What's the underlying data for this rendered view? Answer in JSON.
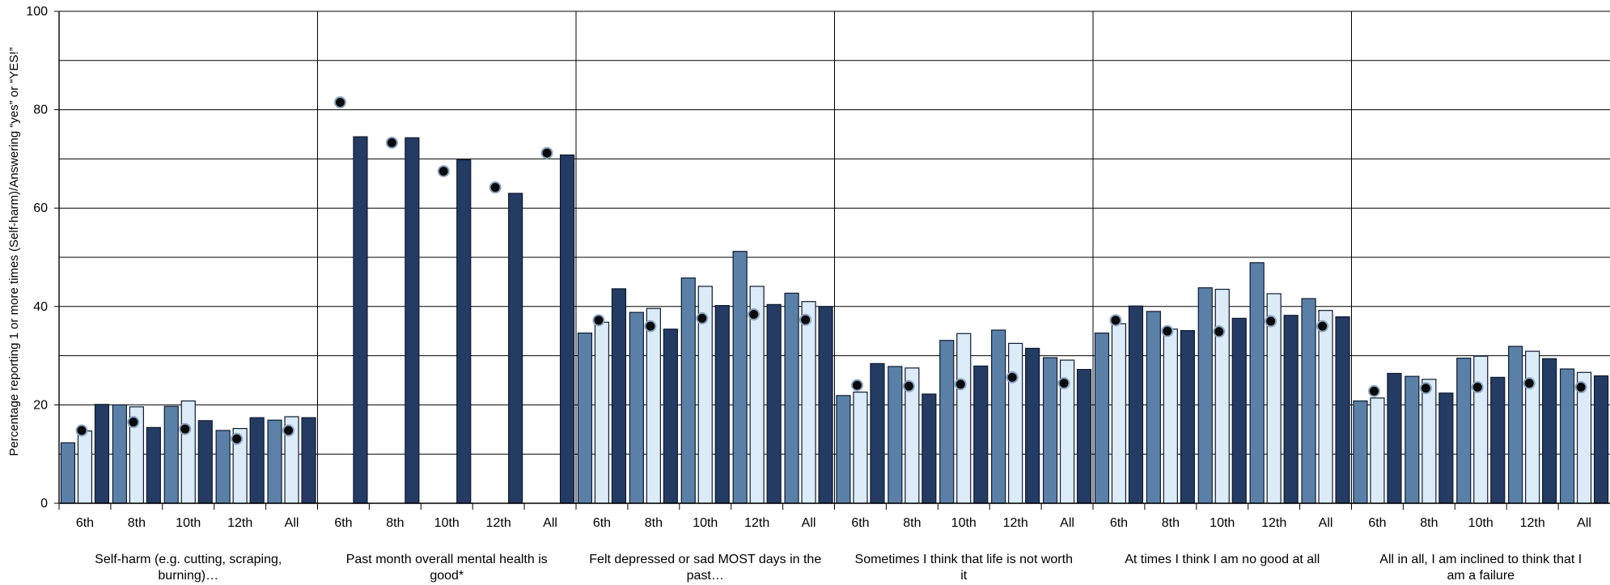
{
  "chart_data": {
    "type": "bar",
    "ylabel": "Percentage reporting 1 or more times (Self-harm)/Answering “yes” or “YES!”",
    "ylim": [
      0,
      100
    ],
    "yticks": [
      0,
      20,
      40,
      60,
      80,
      100
    ],
    "grid": true,
    "grades": [
      "6th",
      "8th",
      "10th",
      "12th",
      "All"
    ],
    "colors": {
      "bar1": "#5b80a8",
      "bar2": "#dcebf8",
      "bar3": "#243b63",
      "marker": "#0a0a0a",
      "marker_ring": "#8aa4c4",
      "grid": "#000000"
    },
    "groups": [
      {
        "label": [
          "Self-harm (e.g. cutting, scraping,",
          "burning)…"
        ],
        "bar1": [
          12.3,
          20.0,
          19.7,
          14.8,
          16.9
        ],
        "bar2": [
          14.7,
          19.6,
          20.8,
          15.2,
          17.6
        ],
        "bar3": [
          20.1,
          15.4,
          16.8,
          17.4,
          17.4
        ],
        "marker": [
          14.8,
          16.5,
          15.1,
          13.1,
          14.8
        ]
      },
      {
        "label": [
          "Past month overall mental health is",
          "good*"
        ],
        "bar1": [
          null,
          null,
          null,
          null,
          null
        ],
        "bar2": [
          null,
          null,
          null,
          null,
          null
        ],
        "bar3": [
          74.5,
          74.3,
          69.8,
          63.0,
          70.8
        ],
        "marker": [
          81.5,
          73.3,
          67.5,
          64.2,
          71.2
        ]
      },
      {
        "label": [
          "Felt depressed or sad MOST days in the",
          "past…"
        ],
        "bar1": [
          34.6,
          38.8,
          45.8,
          51.2,
          42.7
        ],
        "bar2": [
          36.8,
          39.6,
          44.1,
          44.1,
          41.0
        ],
        "bar3": [
          43.6,
          35.4,
          40.2,
          40.4,
          40.0
        ],
        "marker": [
          37.2,
          36.0,
          37.6,
          38.4,
          37.3
        ]
      },
      {
        "label": [
          "Sometimes I think that life is not worth",
          "it"
        ],
        "bar1": [
          21.9,
          27.8,
          33.1,
          35.2,
          29.6
        ],
        "bar2": [
          22.6,
          27.5,
          34.5,
          32.5,
          29.1
        ],
        "bar3": [
          28.4,
          22.2,
          27.9,
          31.5,
          27.2
        ],
        "marker": [
          24.0,
          23.8,
          24.2,
          25.6,
          24.4
        ]
      },
      {
        "label": [
          "At times I think I am no good at all"
        ],
        "bar1": [
          34.6,
          39.0,
          43.8,
          48.9,
          41.6
        ],
        "bar2": [
          36.5,
          35.4,
          43.5,
          42.6,
          39.2
        ],
        "bar3": [
          40.1,
          35.1,
          37.6,
          38.2,
          37.9
        ],
        "marker": [
          37.2,
          35.0,
          34.9,
          37.0,
          36.0
        ]
      },
      {
        "label": [
          "All in all, I am inclined to think that I",
          "am a failure"
        ],
        "bar1": [
          20.8,
          25.8,
          29.5,
          31.9,
          27.3
        ],
        "bar2": [
          21.4,
          25.2,
          29.9,
          30.9,
          26.6
        ],
        "bar3": [
          26.4,
          22.4,
          25.6,
          29.4,
          25.9
        ],
        "marker": [
          22.8,
          23.4,
          23.6,
          24.4,
          23.6
        ]
      }
    ]
  }
}
